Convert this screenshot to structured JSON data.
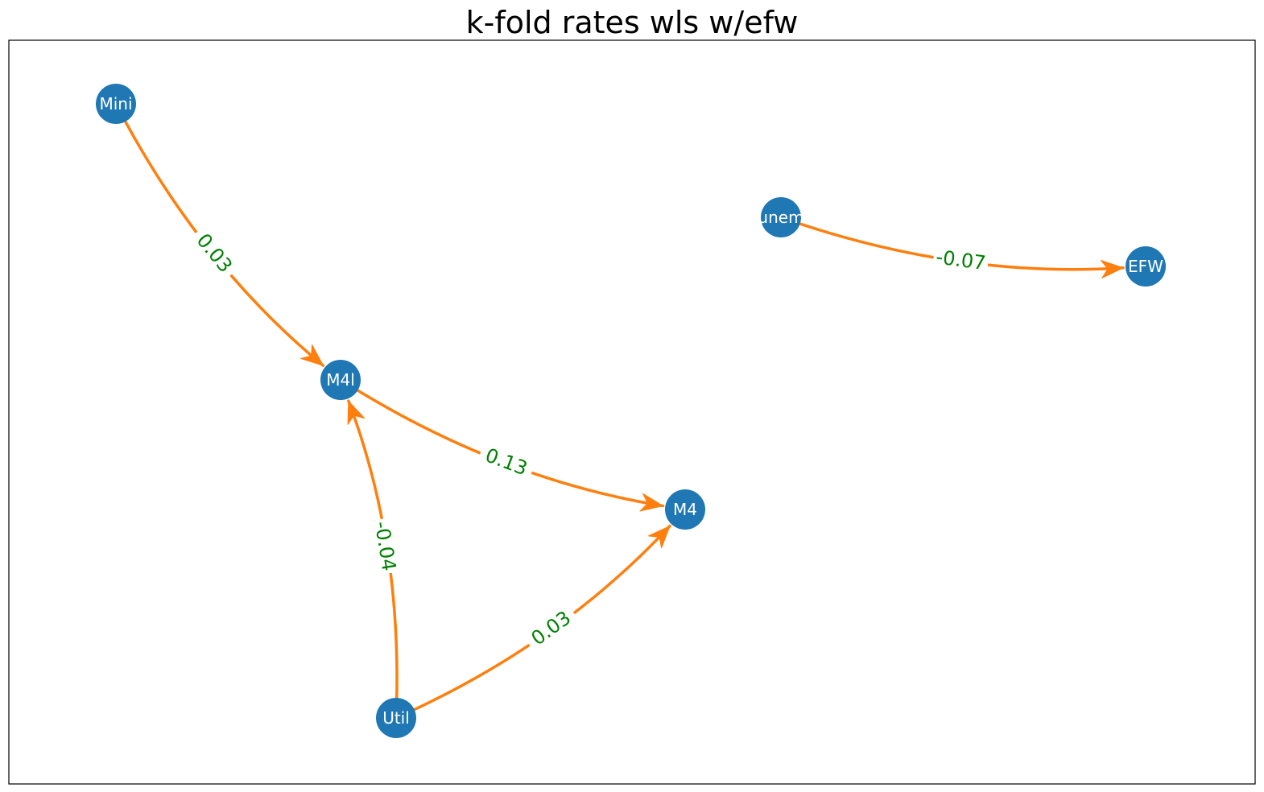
{
  "title": "k-fold rates wls w/efw",
  "colors": {
    "node": "#1f77b4",
    "edge": "#ff7f0e",
    "edge_label": "#008000",
    "node_label": "#ffffff"
  },
  "nodes": [
    {
      "id": "Mini",
      "label": "Mini"
    },
    {
      "id": "M4l",
      "label": "M4l"
    },
    {
      "id": "M4",
      "label": "M4"
    },
    {
      "id": "Util",
      "label": "Util"
    },
    {
      "id": "unem",
      "label": "unem"
    },
    {
      "id": "EFW",
      "label": "EFW"
    }
  ],
  "edges": [
    {
      "from": "Mini",
      "to": "M4l",
      "label": "0.03"
    },
    {
      "from": "M4l",
      "to": "M4",
      "label": "0.13"
    },
    {
      "from": "Util",
      "to": "M4l",
      "label": "-0.04"
    },
    {
      "from": "Util",
      "to": "M4",
      "label": "0.03"
    },
    {
      "from": "unem",
      "to": "EFW",
      "label": "-0.07"
    }
  ]
}
